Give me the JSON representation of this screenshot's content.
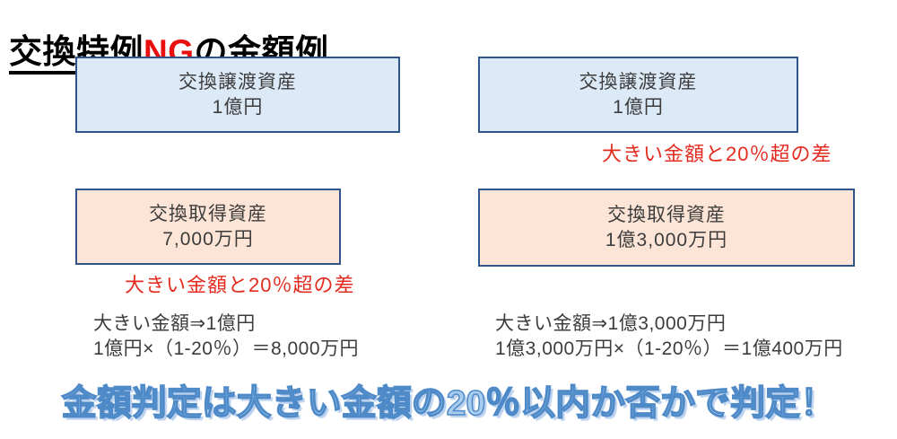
{
  "title": {
    "part1": "交換特例",
    "highlight": "NG",
    "part2": "の金額例"
  },
  "columns": [
    {
      "give_box": {
        "line1": "交換譲渡資産",
        "line2": "1億円"
      },
      "get_box": {
        "line1": "交換取得資産",
        "line2": "7,000万円"
      },
      "red_note": "大きい金額と20％超の差",
      "calc_line1": "大きい金額⇒1億円",
      "calc_line2": "1億円×（1-20％）＝8,000万円"
    },
    {
      "give_box": {
        "line1": "交換譲渡資産",
        "line2": "1億円"
      },
      "get_box": {
        "line1": "交換取得資産",
        "line2": "1億3,000万円"
      },
      "red_note": "大きい金額と20％超の差",
      "calc_line1": "大きい金額⇒1億3,000万円",
      "calc_line2": "1億3,000万円×（1-20％）＝1億400万円"
    }
  ],
  "footer": {
    "text": "金額判定は大きい金額の20％以内か否かで判定！"
  },
  "colors": {
    "title-red": "#e90f0f",
    "accent-red": "#e42b20",
    "box-border": "#30548c",
    "blue-fill": "#dce9f7",
    "peach-fill": "#fce4d6",
    "text-dark": "#3c3c3c",
    "wordart-fill": "#a9cdee",
    "wordart-outline": "#4e8ac8"
  }
}
